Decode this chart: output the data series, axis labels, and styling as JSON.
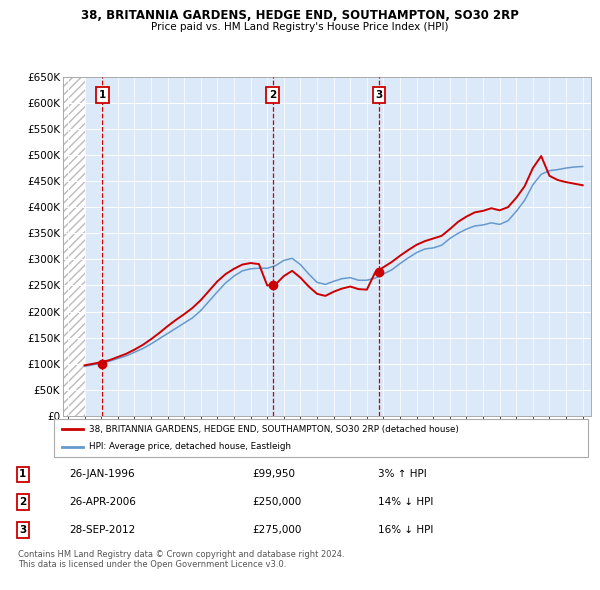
{
  "title": "38, BRITANNIA GARDENS, HEDGE END, SOUTHAMPTON, SO30 2RP",
  "subtitle": "Price paid vs. HM Land Registry's House Price Index (HPI)",
  "ylim": [
    0,
    650000
  ],
  "yticks": [
    0,
    50000,
    100000,
    150000,
    200000,
    250000,
    300000,
    350000,
    400000,
    450000,
    500000,
    550000,
    600000,
    650000
  ],
  "ytick_labels": [
    "£0",
    "£50K",
    "£100K",
    "£150K",
    "£200K",
    "£250K",
    "£300K",
    "£350K",
    "£400K",
    "£450K",
    "£500K",
    "£550K",
    "£600K",
    "£650K"
  ],
  "xlim_start": 1993.7,
  "xlim_end": 2025.5,
  "plot_bg": "#dce9f8",
  "transaction_color": "#cc0000",
  "hpi_color": "#6699cc",
  "transactions": [
    {
      "num": 1,
      "year": 1996.07,
      "price": 99950
    },
    {
      "num": 2,
      "year": 2006.32,
      "price": 250000
    },
    {
      "num": 3,
      "year": 2012.74,
      "price": 275000
    }
  ],
  "legend_property": "38, BRITANNIA GARDENS, HEDGE END, SOUTHAMPTON, SO30 2RP (detached house)",
  "legend_hpi": "HPI: Average price, detached house, Eastleigh",
  "table_rows": [
    {
      "num": 1,
      "date": "26-JAN-1996",
      "price": "£99,950",
      "note": "3% ↑ HPI"
    },
    {
      "num": 2,
      "date": "26-APR-2006",
      "price": "£250,000",
      "note": "14% ↓ HPI"
    },
    {
      "num": 3,
      "date": "28-SEP-2012",
      "price": "£275,000",
      "note": "16% ↓ HPI"
    }
  ],
  "footer": "Contains HM Land Registry data © Crown copyright and database right 2024.\nThis data is licensed under the Open Government Licence v3.0.",
  "hatch_end_year": 1995.0,
  "hpi_years": [
    1995,
    1995.5,
    1996,
    1996.5,
    1997,
    1997.5,
    1998,
    1998.5,
    1999,
    1999.5,
    2000,
    2000.5,
    2001,
    2001.5,
    2002,
    2002.5,
    2003,
    2003.5,
    2004,
    2004.5,
    2005,
    2005.5,
    2006,
    2006.5,
    2007,
    2007.5,
    2008,
    2008.5,
    2009,
    2009.5,
    2010,
    2010.5,
    2011,
    2011.5,
    2012,
    2012.5,
    2013,
    2013.5,
    2014,
    2014.5,
    2015,
    2015.5,
    2016,
    2016.5,
    2017,
    2017.5,
    2018,
    2018.5,
    2019,
    2019.5,
    2020,
    2020.5,
    2021,
    2021.5,
    2022,
    2022.5,
    2023,
    2023.5,
    2024,
    2024.5,
    2025
  ],
  "hpi_values": [
    95000,
    98000,
    101000,
    105000,
    110000,
    115000,
    122000,
    129000,
    138000,
    148000,
    158000,
    168000,
    178000,
    188000,
    202000,
    220000,
    238000,
    255000,
    268000,
    278000,
    282000,
    283000,
    283000,
    288000,
    298000,
    302000,
    290000,
    272000,
    256000,
    252000,
    258000,
    263000,
    265000,
    260000,
    260000,
    264000,
    272000,
    280000,
    292000,
    303000,
    313000,
    320000,
    322000,
    327000,
    340000,
    350000,
    358000,
    364000,
    366000,
    370000,
    367000,
    374000,
    392000,
    413000,
    443000,
    463000,
    470000,
    472000,
    475000,
    477000,
    478000
  ],
  "property_years": [
    1995,
    1995.5,
    1996,
    1996.5,
    1997,
    1997.5,
    1998,
    1998.5,
    1999,
    1999.5,
    2000,
    2000.5,
    2001,
    2001.5,
    2002,
    2002.5,
    2003,
    2003.5,
    2004,
    2004.5,
    2005,
    2005.5,
    2006,
    2006.5,
    2007,
    2007.5,
    2008,
    2008.5,
    2009,
    2009.5,
    2010,
    2010.5,
    2011,
    2011.5,
    2012,
    2012.5,
    2013,
    2013.5,
    2014,
    2014.5,
    2015,
    2015.5,
    2016,
    2016.5,
    2017,
    2017.5,
    2018,
    2018.5,
    2019,
    2019.5,
    2020,
    2020.5,
    2021,
    2021.5,
    2022,
    2022.5,
    2023,
    2023.5,
    2024,
    2024.5,
    2025
  ],
  "property_values": [
    97000,
    99950,
    103000,
    107000,
    113000,
    119000,
    127000,
    136000,
    147000,
    159000,
    172000,
    184000,
    195000,
    207000,
    222000,
    240000,
    258000,
    272000,
    282000,
    290000,
    293000,
    291000,
    250000,
    252000,
    268000,
    278000,
    265000,
    248000,
    234000,
    230000,
    238000,
    244000,
    248000,
    243000,
    242000,
    275000,
    285000,
    295000,
    307000,
    318000,
    328000,
    335000,
    340000,
    345000,
    358000,
    372000,
    382000,
    390000,
    393000,
    398000,
    394000,
    400000,
    418000,
    440000,
    475000,
    498000,
    460000,
    452000,
    448000,
    445000,
    442000
  ]
}
